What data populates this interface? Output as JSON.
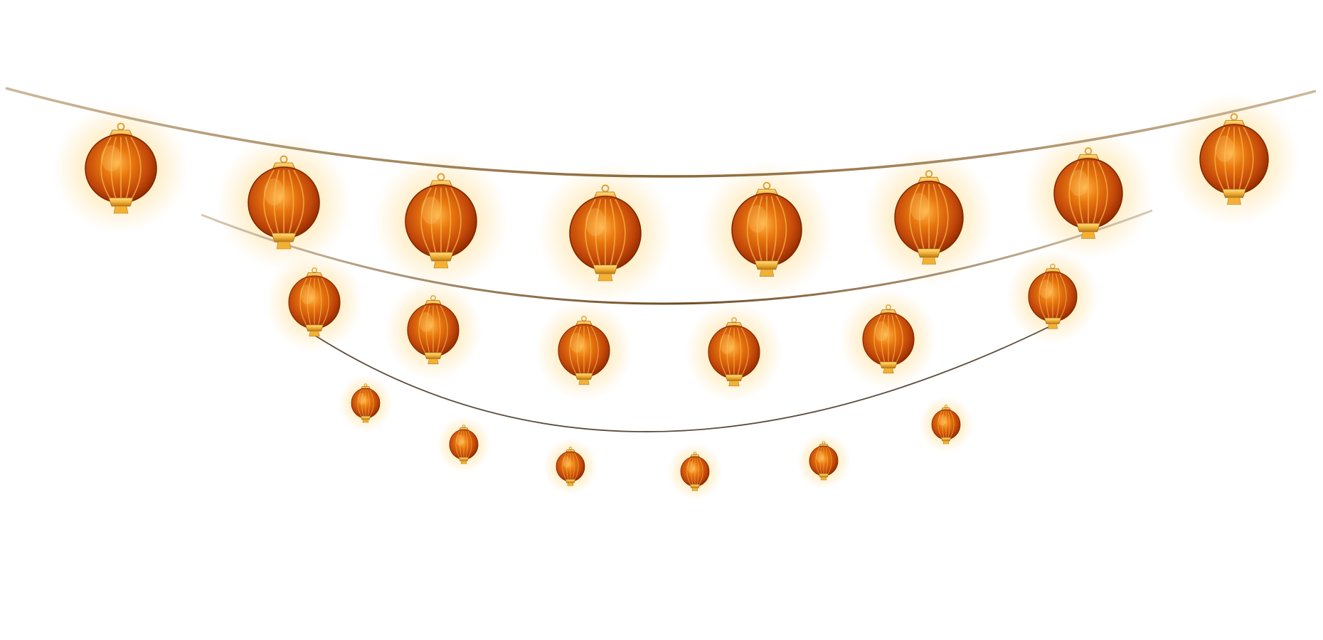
{
  "scene": {
    "background": "#ffffff",
    "subject": "lantern-garland",
    "strings": [
      {
        "name": "top-string",
        "lantern_count": 8
      },
      {
        "name": "middle-string",
        "lantern_count": 6
      },
      {
        "name": "bottom-string",
        "lantern_count": 6
      }
    ]
  },
  "colors": {
    "lantern_body": "#d9620a",
    "lantern_dark": "#8f2a00",
    "lantern_highlight": "#ffb347",
    "gold_trim": "#f2b134",
    "glow": "#ffb000",
    "string_top": "#b08850",
    "string_mid": "#8a6a3c",
    "string_low": "#5a4a3a"
  }
}
